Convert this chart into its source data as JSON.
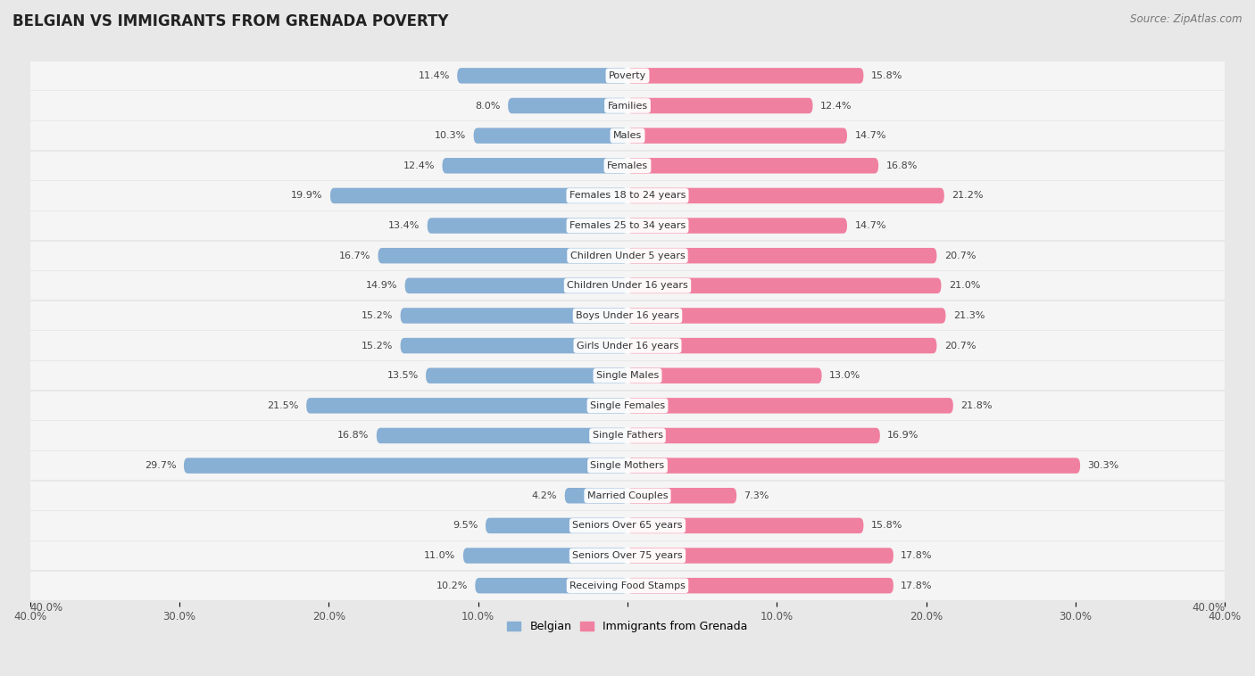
{
  "title": "BELGIAN VS IMMIGRANTS FROM GRENADA POVERTY",
  "source": "Source: ZipAtlas.com",
  "categories": [
    "Poverty",
    "Families",
    "Males",
    "Females",
    "Females 18 to 24 years",
    "Females 25 to 34 years",
    "Children Under 5 years",
    "Children Under 16 years",
    "Boys Under 16 years",
    "Girls Under 16 years",
    "Single Males",
    "Single Females",
    "Single Fathers",
    "Single Mothers",
    "Married Couples",
    "Seniors Over 65 years",
    "Seniors Over 75 years",
    "Receiving Food Stamps"
  ],
  "belgian_values": [
    11.4,
    8.0,
    10.3,
    12.4,
    19.9,
    13.4,
    16.7,
    14.9,
    15.2,
    15.2,
    13.5,
    21.5,
    16.8,
    29.7,
    4.2,
    9.5,
    11.0,
    10.2
  ],
  "grenada_values": [
    15.8,
    12.4,
    14.7,
    16.8,
    21.2,
    14.7,
    20.7,
    21.0,
    21.3,
    20.7,
    13.0,
    21.8,
    16.9,
    30.3,
    7.3,
    15.8,
    17.8,
    17.8
  ],
  "belgian_color": "#88afd4",
  "grenada_color": "#f080a0",
  "belgian_label": "Belgian",
  "grenada_label": "Immigrants from Grenada",
  "xlim": 40.0,
  "background_color": "#e8e8e8",
  "row_bg_color": "#f5f5f5",
  "title_fontsize": 12,
  "source_fontsize": 8.5
}
